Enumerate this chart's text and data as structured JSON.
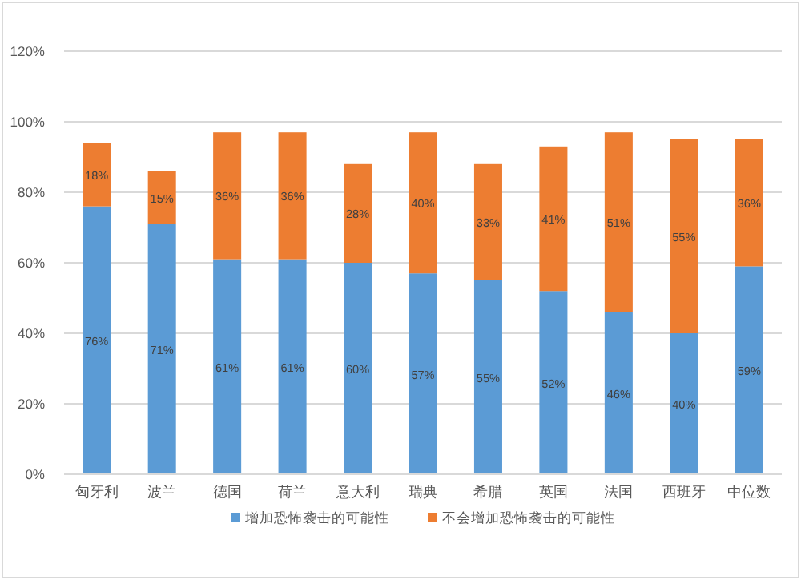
{
  "chart_data": {
    "type": "bar",
    "stacked": true,
    "categories": [
      "匈牙利",
      "波兰",
      "德国",
      "荷兰",
      "意大利",
      "瑞典",
      "希腊",
      "英国",
      "法国",
      "西班牙",
      "中位数"
    ],
    "series": [
      {
        "name": "增加恐怖袭击的可能性",
        "color": "#5b9bd5",
        "values": [
          76,
          71,
          61,
          61,
          60,
          57,
          55,
          52,
          46,
          40,
          59
        ],
        "value_labels": [
          "76%",
          "71%",
          "61%",
          "61%",
          "60%",
          "57%",
          "55%",
          "52%",
          "46%",
          "40%",
          "59%"
        ]
      },
      {
        "name": "不会增加恐怖袭击的可能性",
        "color": "#ed7d31",
        "values": [
          18,
          15,
          36,
          36,
          28,
          40,
          33,
          41,
          51,
          55,
          36
        ],
        "value_labels": [
          "18%",
          "15%",
          "36%",
          "36%",
          "28%",
          "40%",
          "33%",
          "41%",
          "51%",
          "55%",
          "36%"
        ]
      }
    ],
    "ylim": [
      0,
      120
    ],
    "yticks": [
      {
        "value": 0,
        "label": "0%"
      },
      {
        "value": 20,
        "label": "20%"
      },
      {
        "value": 40,
        "label": "40%"
      },
      {
        "value": 60,
        "label": "60%"
      },
      {
        "value": 80,
        "label": "80%"
      },
      {
        "value": 100,
        "label": "100%"
      },
      {
        "value": 120,
        "label": "120%"
      }
    ],
    "grid": "y",
    "legend": "bottom"
  }
}
